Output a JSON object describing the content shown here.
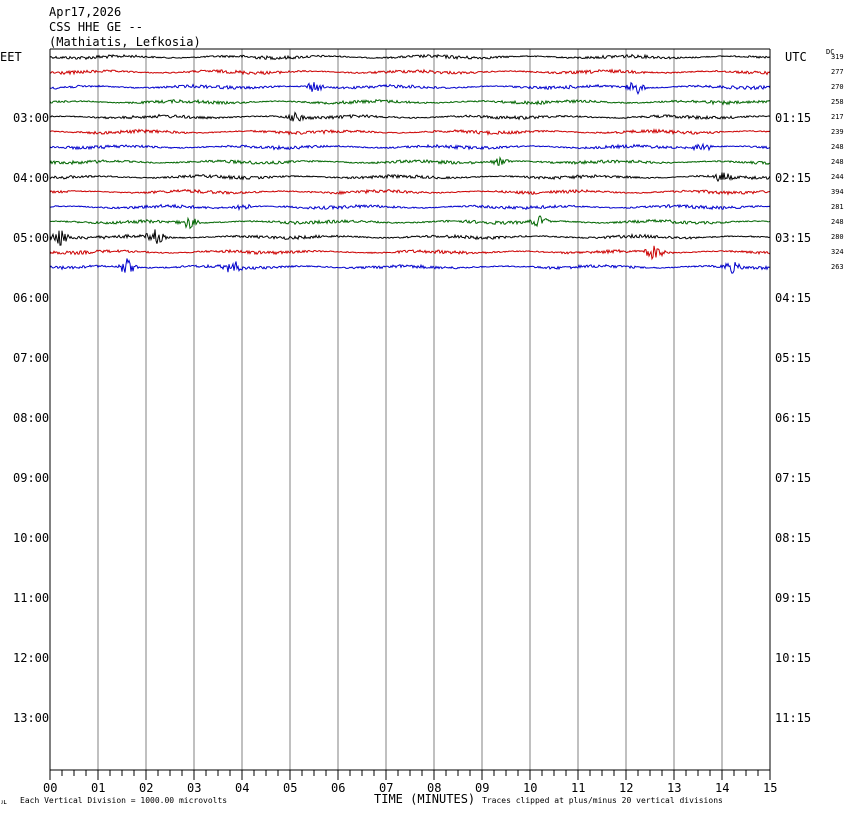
{
  "header": {
    "date": "Apr17,2026",
    "station": "CSS HHE GE --",
    "location": "(Mathiatis, Lefkosia)",
    "left_tz": "EET",
    "right_tz": "UTC",
    "dc_label": "DC"
  },
  "footer": {
    "left_note": "Each Vertical Division = 1000.00 microvolts",
    "axis_title": "TIME (MINUTES)",
    "right_note": "Traces clipped at plus/minus 20 vertical divisions",
    "corner_mark": "ᴊʟ"
  },
  "chart_data": {
    "type": "line",
    "title": "",
    "xlabel": "TIME (MINUTES)",
    "xlim": [
      0,
      15
    ],
    "x_ticks": [
      "00",
      "01",
      "02",
      "03",
      "04",
      "05",
      "06",
      "07",
      "08",
      "09",
      "10",
      "11",
      "12",
      "13",
      "14",
      "15"
    ],
    "left_hour_labels": [
      "03:00",
      "04:00",
      "05:00",
      "06:00",
      "07:00",
      "08:00",
      "09:00",
      "10:00",
      "11:00",
      "12:00",
      "13:00"
    ],
    "right_hour_labels": [
      "01:15",
      "02:15",
      "03:15",
      "04:15",
      "05:15",
      "06:15",
      "07:15",
      "08:15",
      "09:15",
      "10:15",
      "11:15"
    ],
    "trace_colors": [
      "#000000",
      "#cc0000",
      "#0000cc",
      "#006600"
    ],
    "traces": [
      {
        "dc": "319"
      },
      {
        "dc": "277"
      },
      {
        "dc": "270"
      },
      {
        "dc": "258"
      },
      {
        "dc": "217"
      },
      {
        "dc": "239"
      },
      {
        "dc": "248"
      },
      {
        "dc": "248"
      },
      {
        "dc": "244"
      },
      {
        "dc": "394"
      },
      {
        "dc": "281"
      },
      {
        "dc": "248"
      },
      {
        "dc": "280"
      },
      {
        "dc": "324"
      },
      {
        "dc": "263"
      }
    ],
    "grid": true
  }
}
